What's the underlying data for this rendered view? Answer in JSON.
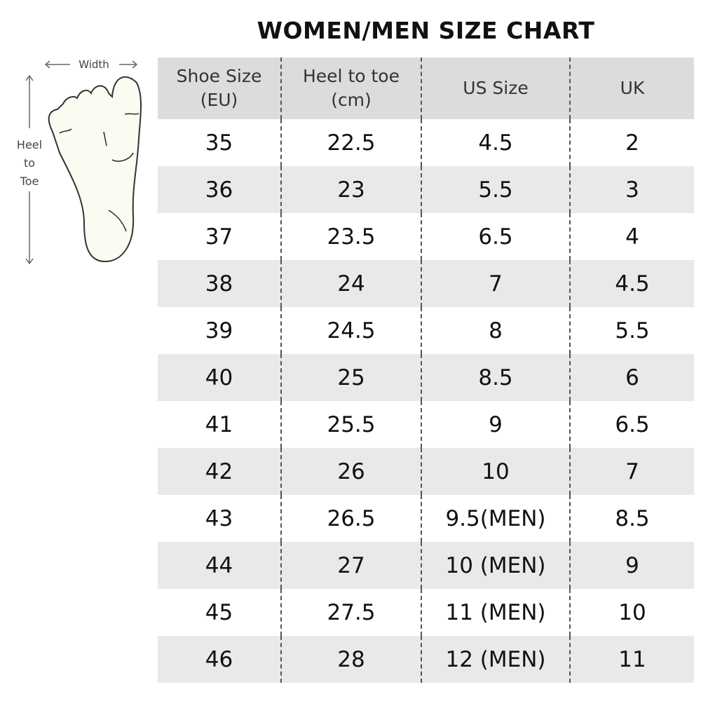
{
  "title": "WOMEN/MEN SIZE CHART",
  "diagram": {
    "width_label": "Width",
    "length_label": [
      "Heel",
      "to",
      "Toe"
    ]
  },
  "headers": [
    [
      "Shoe Size",
      "(EU)"
    ],
    [
      "Heel to toe",
      "(cm)"
    ],
    [
      "US Size"
    ],
    [
      "UK"
    ]
  ],
  "rows": [
    [
      "35",
      "22.5",
      "4.5",
      "2"
    ],
    [
      "36",
      "23",
      "5.5",
      "3"
    ],
    [
      "37",
      "23.5",
      "6.5",
      "4"
    ],
    [
      "38",
      "24",
      "7",
      "4.5"
    ],
    [
      "39",
      "24.5",
      "8",
      "5.5"
    ],
    [
      "40",
      "25",
      "8.5",
      "6"
    ],
    [
      "41",
      "25.5",
      "9",
      "6.5"
    ],
    [
      "42",
      "26",
      "10",
      "7"
    ],
    [
      "43",
      "26.5",
      "9.5(MEN)",
      "8.5"
    ],
    [
      "44",
      "27",
      "10 (MEN)",
      "9"
    ],
    [
      "45",
      "27.5",
      "11 (MEN)",
      "10"
    ],
    [
      "46",
      "28",
      "12 (MEN)",
      "11"
    ]
  ],
  "colors": {
    "header_bg": "#dcdcdc",
    "alt_row_bg": "#e9e9e9",
    "foot_fill": "#fbfbf2"
  }
}
